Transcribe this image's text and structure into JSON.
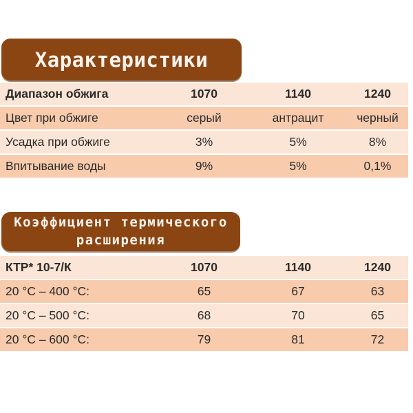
{
  "colors": {
    "title_box_bg": "#8a4513",
    "title_box_text": "#fbf3ec",
    "row_light": "#fbe5d6",
    "row_dark": "#f8cbad",
    "body_text": "#2b2b2b",
    "page_bg": "#ffffff"
  },
  "section1": {
    "title": "Характеристики",
    "table": {
      "header_row": {
        "label": "Диапазон обжига",
        "values": [
          "1070",
          "1140",
          "1240"
        ]
      },
      "rows": [
        {
          "label": "Цвет при обжиге",
          "values": [
            "серый",
            "антрацит",
            "черный"
          ]
        },
        {
          "label": "Усадка при обжиге",
          "values": [
            "3%",
            "5%",
            "8%"
          ]
        },
        {
          "label": "Впитывание воды",
          "values": [
            "9%",
            "5%",
            "0,1%"
          ]
        }
      ]
    }
  },
  "section2": {
    "title_line1": "Коэффициент термического",
    "title_line2": "расширения",
    "table": {
      "header_row": {
        "label": "КТР* 10-7/К",
        "values": [
          "1070",
          "1140",
          "1240"
        ]
      },
      "rows": [
        {
          "label": "20 °C – 400 °C:",
          "values": [
            "65",
            "67",
            "63"
          ]
        },
        {
          "label": "20 °C – 500 °C:",
          "values": [
            "68",
            "70",
            "65"
          ]
        },
        {
          "label": "20 °C – 600 °C:",
          "values": [
            "79",
            "81",
            "72"
          ]
        }
      ]
    }
  }
}
